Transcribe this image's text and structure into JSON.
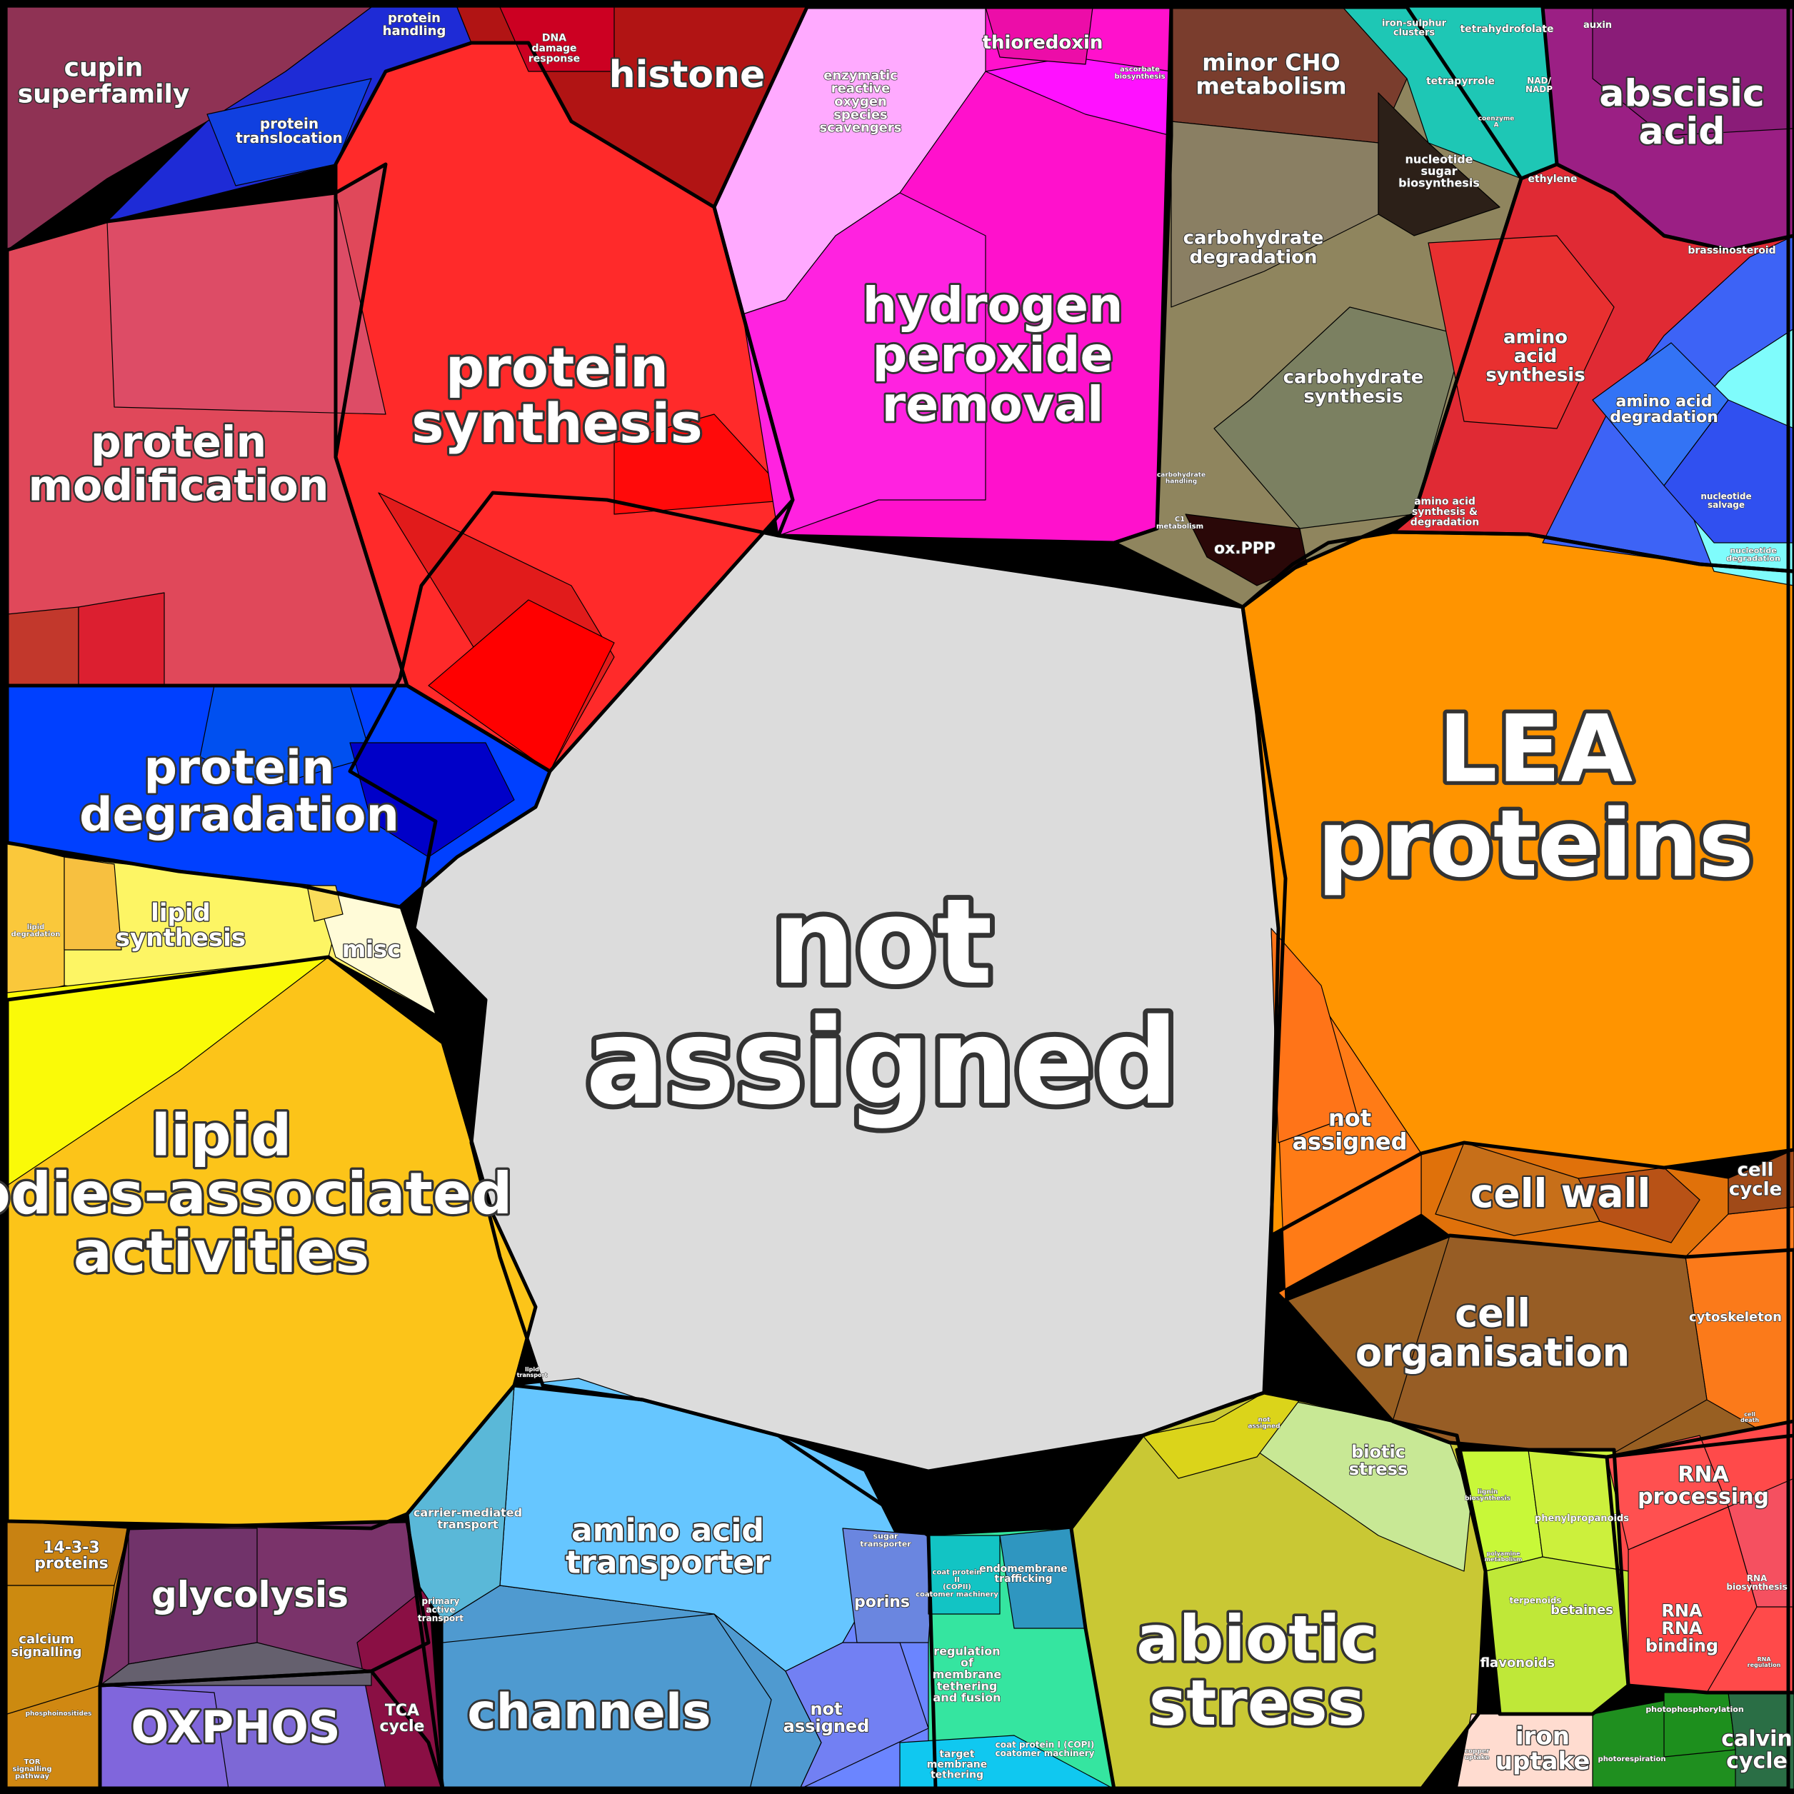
{
  "diagram": {
    "type": "voronoi-treemap",
    "colors": {
      "not_assigned": "#dcdcdc",
      "protein": "#e0403c",
      "lea": "#ff9400",
      "lipid": "#fcc419",
      "hydrogen_peroxide": "#ff11cc",
      "transport": "#66c6ff",
      "stress": "#c9c834",
      "carbohydrate": "#8f855e"
    },
    "labels": {
      "not_assigned_main": "not assigned",
      "lea_proteins": "LEA proteins",
      "lipid_bodies": "lipid bodies-associated activities",
      "protein_synthesis": "protein synthesis",
      "protein_modification": "protein modification",
      "protein_degradation": "protein degradation",
      "hydrogen_peroxide_removal": "hydrogen peroxide removal",
      "abiotic_stress": "abiotic stress",
      "channels": "channels",
      "amino_acid_transporter": "amino acid transporter",
      "histone": "histone",
      "cupin_superfamily": "cupin superfamily",
      "abscisic_acid": "abscisic acid",
      "cell_wall": "cell wall",
      "cell_organisation": "cell organisation",
      "oxphos": "OXPHOS",
      "glycolysis": "glycolysis",
      "minor_cho_metabolism": "minor CHO metabolism",
      "carbohydrate_degradation": "carbohydrate degradation",
      "carbohydrate_synthesis": "carbohydrate synthesis",
      "amino_acid_synthesis": "amino acid synthesis",
      "amino_acid_degradation": "amino acid degradation",
      "thioredoxin": "thioredoxin",
      "enzymatic_ros": "enzymatic reactive oxygen species scavengers",
      "protein_translocation": "protein translocation",
      "protein_handling": "protein handling",
      "dna_damage_response": "DNA damage response",
      "lipid_synthesis": "lipid synthesis",
      "lipid_degradation": "lipid degradation",
      "misc": "misc",
      "not_assigned_lea": "not assigned",
      "not_assigned_transport": "not assigned",
      "cell_cycle": "cell cycle",
      "cytoskeleton": "cytoskeleton",
      "biotic_stress": "biotic stress",
      "rna_processing": "RNA processing",
      "rna_binding": "RNA RNA binding",
      "rna_biosynthesis": "RNA biosynthesis",
      "calvin_cycle": "calvin cycle",
      "iron_uptake": "iron uptake",
      "betaines": "betaines",
      "flavonoids": "flavonoids",
      "phenylpropanoids": "phenylpropanoids",
      "terpenoids": "terpenoids",
      "porins": "porins",
      "carrier_mediated_transport": "carrier-mediated transport",
      "primary_active_transport": "primary active transport",
      "sugar_transporter": "sugar transporter",
      "tca_cycle": "TCA cycle",
      "proteins_14_3_3": "14-3-3 proteins",
      "calcium_signalling": "calcium signalling",
      "ox_ppp": "ox.PPP",
      "nucleotide_sugar_biosynthesis": "nucleotide sugar biosynthesis",
      "tetrapyrrole": "tetrapyrrole",
      "tetrahydrofolate": "tetrahydrofolate",
      "iron_sulphur_clusters": "iron-sulphur clusters",
      "auxin": "auxin",
      "ethylene": "ethylene",
      "brassinosteroid": "brassinosteroid",
      "ascorbate_biosynthesis": "ascorbate biosynthesis",
      "nucleotide_salvage": "nucleotide salvage",
      "nucleotide_degradation": "nucleotide degradation",
      "endomembrane_trafficking": "endomembrane trafficking",
      "regulation_membrane_tethering": "regulation of membrane tethering and fusion",
      "coat_protein_ii": "coat protein II (COPII) coatomer machinery",
      "coat_protein_i": "coat protein I (COPI) coatomer machinery",
      "target_membrane_tethering": "target membrane tethering",
      "photorespiration": "photorespiration",
      "coenzyme_a": "coenzyme A",
      "nad_nadp": "NAD/ NADP",
      "amino_acid_synthesis_degradation": "amino acid synthesis & degradation",
      "carbohydrate_handling": "carbohydrate handling",
      "c1_metabolism": "C1 metabolism",
      "phosphoinositides": "phosphoinositides",
      "tor_signalling": "TOR signalling pathway",
      "photophosphorylation": "photophosphorylation",
      "lipid_transport": "lipid transport",
      "lignin_biosynthesis": "lignin biosynthesis",
      "polyamine_metabolism": "polyamine metabolism",
      "copper_uptake": "copper uptake",
      "not_assigned_stress": "not assigned",
      "cell_death": "cell death",
      "rna_regulation": "RNA regulation"
    }
  }
}
